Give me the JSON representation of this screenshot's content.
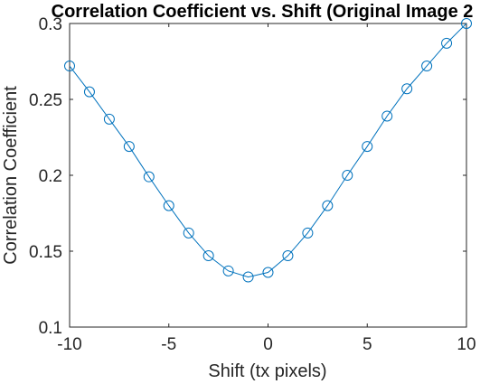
{
  "chart_data": {
    "type": "line",
    "title": "Correlation Coefficient vs. Shift (Original Image 2",
    "xlabel": "Shift (tx pixels)",
    "ylabel": "Correlation Coefficient",
    "xlim": [
      -10,
      10
    ],
    "ylim": [
      0.1,
      0.3
    ],
    "xticks": [
      -10,
      -5,
      0,
      5,
      10
    ],
    "xtick_labels": [
      "-10",
      "-5",
      "0",
      "5",
      "10"
    ],
    "yticks": [
      0.1,
      0.15,
      0.2,
      0.25,
      0.3
    ],
    "ytick_labels": [
      "0.1",
      "0.15",
      "0.2",
      "0.25",
      "0.3"
    ],
    "grid": false,
    "marker": "circle",
    "line_color": "#0072BD",
    "series": [
      {
        "x": [
          -10,
          -9,
          -8,
          -7,
          -6,
          -5,
          -4,
          -3,
          -2,
          -1,
          0,
          1,
          2,
          3,
          4,
          5,
          6,
          7,
          8,
          9,
          10
        ],
        "values": [
          0.272,
          0.255,
          0.237,
          0.219,
          0.199,
          0.18,
          0.162,
          0.147,
          0.137,
          0.133,
          0.136,
          0.147,
          0.162,
          0.18,
          0.2,
          0.219,
          0.239,
          0.257,
          0.272,
          0.287,
          0.3
        ]
      }
    ]
  }
}
